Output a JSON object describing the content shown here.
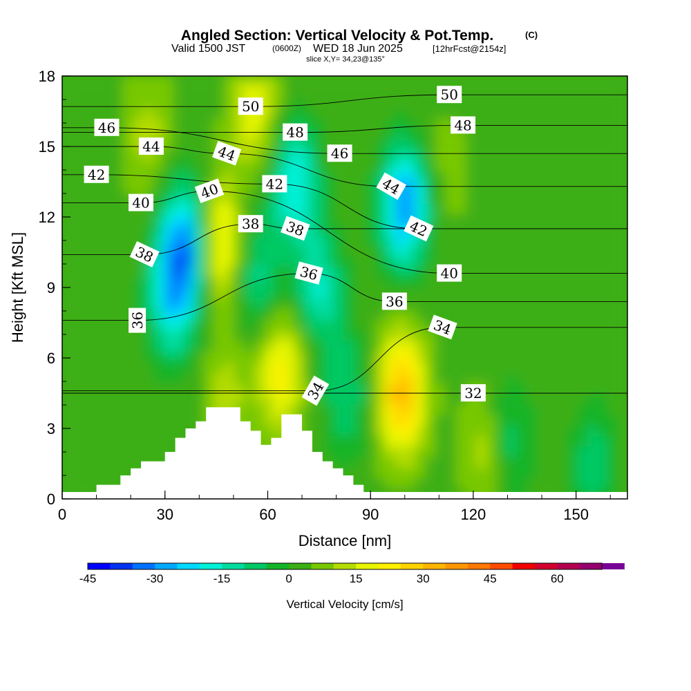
{
  "header": {
    "title": "Angled Section: Vertical Velocity & Pot.Temp.",
    "copyright": "(C)",
    "valid_prefix": "Valid 1500 JST",
    "valid_utc": "(0600Z)",
    "valid_date": "WED 18 Jun 2025",
    "forecast": "[12hrFcst@2154z]",
    "slice": "slice X,Y= 34,23@135°"
  },
  "chart_data": {
    "type": "heatmap",
    "xlabel": "Distance [nm]",
    "ylabel": "Height [Kft MSL]",
    "xlim": [
      0,
      165
    ],
    "ylim": [
      0,
      18
    ],
    "xticks": [
      "0",
      "30",
      "60",
      "90",
      "120",
      "150"
    ],
    "xtick_values": [
      0,
      30,
      60,
      90,
      120,
      150
    ],
    "yticks": [
      "0",
      "3",
      "6",
      "9",
      "12",
      "15",
      "18"
    ],
    "ytick_values": [
      0,
      3,
      6,
      9,
      12,
      15,
      18
    ],
    "colorbar": {
      "label": "Vertical Velocity [cm/s]",
      "min": -45,
      "max": 70,
      "step": 5,
      "tick_labels": [
        "-45",
        "-30",
        "-15",
        "0",
        "15",
        "30",
        "45",
        "60"
      ],
      "tick_values": [
        -45,
        -30,
        -15,
        0,
        15,
        30,
        45,
        60
      ],
      "colors": [
        "#0000ff",
        "#0033f0",
        "#0072ff",
        "#00a8ff",
        "#00d8ff",
        "#00f0d8",
        "#00dca0",
        "#00c864",
        "#14b428",
        "#3caf14",
        "#78c800",
        "#b4dc00",
        "#e6f500",
        "#fff000",
        "#ffd200",
        "#ffb400",
        "#ff9600",
        "#ff7800",
        "#ff4b00",
        "#f00000",
        "#d2002d",
        "#b40050",
        "#960070",
        "#780096"
      ]
    },
    "vertical_velocity_features": [
      {
        "x": 36,
        "y": 11.0,
        "value": -28
      },
      {
        "x": 32,
        "y": 8.5,
        "value": -20
      },
      {
        "x": 68,
        "y": 13.5,
        "value": -20
      },
      {
        "x": 100,
        "y": 12.5,
        "value": -30
      },
      {
        "x": 75,
        "y": 9.0,
        "value": -15
      },
      {
        "x": 57,
        "y": 9.5,
        "value": -12
      },
      {
        "x": 46,
        "y": 11.0,
        "value": 25
      },
      {
        "x": 25,
        "y": 15.5,
        "value": 12
      },
      {
        "x": 56,
        "y": 16.5,
        "value": 18
      },
      {
        "x": 64,
        "y": 5.5,
        "value": 22
      },
      {
        "x": 99,
        "y": 4.5,
        "value": 32
      },
      {
        "x": 124,
        "y": 2.2,
        "value": 15
      },
      {
        "x": 48,
        "y": 4.5,
        "value": 12
      },
      {
        "x": 112,
        "y": 14.0,
        "value": 8
      },
      {
        "x": 83,
        "y": 4.5,
        "value": -10
      },
      {
        "x": 130,
        "y": 2.5,
        "value": -10
      },
      {
        "x": 155,
        "y": 1.5,
        "value": -8
      }
    ],
    "terrain_profile": {
      "x": [
        10,
        10,
        17,
        17,
        20,
        20,
        23,
        23,
        30,
        30,
        33,
        33,
        36,
        36,
        39,
        39,
        42,
        42,
        45,
        45,
        52,
        52,
        55,
        55,
        58,
        58,
        61,
        61,
        64,
        64,
        70,
        70,
        73,
        73,
        76,
        76,
        79,
        79,
        82,
        82,
        85,
        85,
        88,
        88
      ],
      "y": [
        0,
        0.6,
        0.6,
        1.0,
        1.0,
        1.3,
        1.3,
        1.6,
        1.6,
        2.0,
        2.0,
        2.6,
        2.6,
        3.0,
        3.0,
        3.3,
        3.3,
        3.9,
        3.9,
        3.9,
        3.9,
        3.3,
        3.3,
        2.9,
        2.9,
        2.3,
        2.3,
        2.6,
        2.6,
        3.6,
        3.6,
        2.9,
        2.9,
        2.0,
        2.0,
        1.6,
        1.6,
        1.3,
        1.3,
        1.0,
        1.0,
        0.6,
        0.6,
        0
      ]
    },
    "theta_contour_labels": [
      {
        "text": "50",
        "x": 55,
        "y": 16.7,
        "angle": 0
      },
      {
        "text": "50",
        "x": 113,
        "y": 17.2,
        "angle": 0
      },
      {
        "text": "48",
        "x": 68,
        "y": 15.6,
        "angle": 0
      },
      {
        "text": "48",
        "x": 117,
        "y": 15.9,
        "angle": 0
      },
      {
        "text": "46",
        "x": 13,
        "y": 15.8,
        "angle": 0
      },
      {
        "text": "46",
        "x": 81,
        "y": 14.7,
        "angle": 0
      },
      {
        "text": "44",
        "x": 26,
        "y": 15.0,
        "angle": 0
      },
      {
        "text": "44",
        "x": 48,
        "y": 14.7,
        "angle": 20
      },
      {
        "text": "44",
        "x": 96,
        "y": 13.3,
        "angle": 30
      },
      {
        "text": "42",
        "x": 10,
        "y": 13.8,
        "angle": 0
      },
      {
        "text": "42",
        "x": 62,
        "y": 13.4,
        "angle": 0
      },
      {
        "text": "42",
        "x": 104,
        "y": 11.5,
        "angle": 25
      },
      {
        "text": "40",
        "x": 23,
        "y": 12.6,
        "angle": 0
      },
      {
        "text": "40",
        "x": 43,
        "y": 13.1,
        "angle": -20
      },
      {
        "text": "40",
        "x": 113,
        "y": 9.6,
        "angle": 0
      },
      {
        "text": "38",
        "x": 24,
        "y": 10.4,
        "angle": 25
      },
      {
        "text": "38",
        "x": 55,
        "y": 11.7,
        "angle": 0
      },
      {
        "text": "38",
        "x": 68,
        "y": 11.5,
        "angle": 20
      },
      {
        "text": "36",
        "x": 22,
        "y": 7.6,
        "angle": -90
      },
      {
        "text": "36",
        "x": 72,
        "y": 9.6,
        "angle": 15
      },
      {
        "text": "36",
        "x": 97,
        "y": 8.4,
        "angle": 0
      },
      {
        "text": "34",
        "x": 74,
        "y": 4.6,
        "angle": -60
      },
      {
        "text": "34",
        "x": 111,
        "y": 7.3,
        "angle": 20
      },
      {
        "text": "32",
        "x": 120,
        "y": 4.5,
        "angle": 0
      }
    ]
  }
}
